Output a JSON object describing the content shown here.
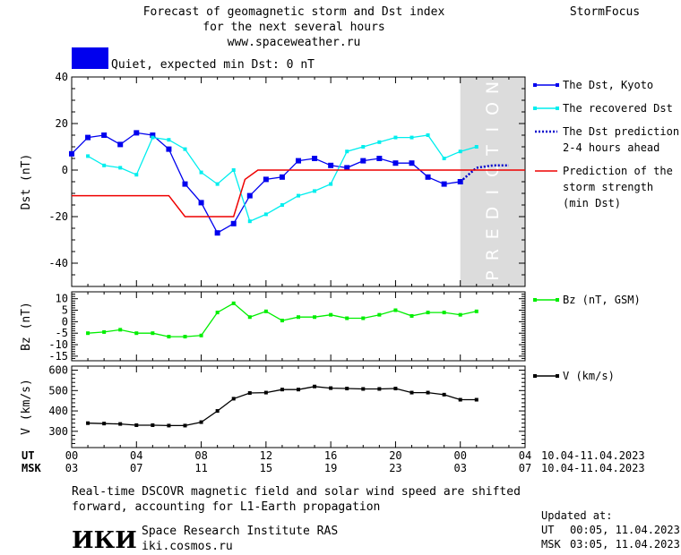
{
  "header": {
    "title_line1": "Forecast of geomagnetic storm and Dst index",
    "title_line2": "for the next several hours",
    "title_line3": "www.spaceweather.ru",
    "brand": "StormFocus"
  },
  "status": {
    "label": "Quiet, expected min Dst: 0 nT",
    "color": "#0000ee"
  },
  "prediction_label": "PREDICTION",
  "time_axis": {
    "ut_label": "UT",
    "msk_label": "MSK",
    "ut_ticks": [
      "00",
      "04",
      "08",
      "12",
      "16",
      "20",
      "00",
      "04"
    ],
    "msk_ticks": [
      "03",
      "07",
      "11",
      "15",
      "19",
      "23",
      "03",
      "07"
    ],
    "ut_dates": "10.04-11.04.2023",
    "msk_dates": "10.04-11.04.2023"
  },
  "chart_data": [
    {
      "type": "line",
      "ylabel": "Dst (nT)",
      "ylim": [
        -50,
        40
      ],
      "yticks": [
        40,
        20,
        0,
        -20,
        -40
      ],
      "xlim": [
        0,
        28
      ],
      "prediction_region": [
        24,
        28
      ],
      "legend_placement": "right",
      "series": [
        {
          "name": "The Dst, Kyoto",
          "color": "#0000ee",
          "x": [
            0,
            1,
            2,
            3,
            4,
            5,
            6,
            7,
            8,
            9,
            10,
            11,
            12,
            13,
            14,
            15,
            16,
            17,
            18,
            19,
            20,
            21,
            22,
            23,
            24
          ],
          "values": [
            7,
            14,
            15,
            11,
            16,
            15,
            9,
            -6,
            -14,
            -27,
            -23,
            -11,
            -4,
            -3,
            4,
            5,
            2,
            1,
            4,
            5,
            3,
            3,
            -3,
            -6,
            -5
          ]
        },
        {
          "name": "The recovered Dst",
          "color": "#00eeee",
          "x": [
            1,
            2,
            3,
            4,
            5,
            6,
            7,
            8,
            9,
            10,
            11,
            12,
            13,
            14,
            15,
            16,
            17,
            18,
            19,
            20,
            21,
            22,
            23,
            24,
            25
          ],
          "values": [
            6,
            2,
            1,
            -2,
            14,
            13,
            9,
            -1,
            -6,
            0,
            -22,
            -19,
            -15,
            -11,
            -9,
            -6,
            8,
            10,
            12,
            14,
            14,
            15,
            5,
            8,
            10
          ]
        },
        {
          "name": "The Dst prediction\n2-4 hours ahead",
          "color": "#0000cc",
          "x": [
            24,
            25,
            26,
            27
          ],
          "values": [
            -5,
            1,
            2,
            2
          ]
        },
        {
          "name": "Prediction of the\nstorm strength\n(min Dst)",
          "color": "#ee0000",
          "x": [
            0,
            5,
            6,
            7,
            10,
            10.7,
            11.5,
            28
          ],
          "values": [
            -11,
            -11,
            -11,
            -20,
            -20,
            -4,
            0,
            0
          ]
        }
      ]
    },
    {
      "type": "line",
      "ylabel": "Bz (nT)",
      "ylim": [
        -17,
        13
      ],
      "yticks": [
        10,
        5,
        0,
        -5,
        -10,
        -15
      ],
      "xlim": [
        0,
        28
      ],
      "series": [
        {
          "name": "Bz (nT, GSM)",
          "color": "#00ee00",
          "x": [
            1,
            2,
            3,
            4,
            5,
            6,
            7,
            8,
            9,
            10,
            11,
            12,
            13,
            14,
            15,
            16,
            17,
            18,
            19,
            20,
            21,
            22,
            23,
            24,
            25
          ],
          "values": [
            -5,
            -4.5,
            -3.5,
            -5,
            -5,
            -6.5,
            -6.5,
            -6,
            4,
            8,
            2,
            4.5,
            0.5,
            2,
            2,
            3,
            1.5,
            1.5,
            3,
            5,
            2.5,
            4,
            4,
            3,
            4.5
          ]
        }
      ]
    },
    {
      "type": "line",
      "ylabel": "V (km/s)",
      "ylim": [
        220,
        620
      ],
      "yticks": [
        600,
        500,
        400,
        300
      ],
      "xlim": [
        0,
        28
      ],
      "series": [
        {
          "name": "V (km/s)",
          "color": "#000000",
          "x": [
            1,
            2,
            3,
            4,
            5,
            6,
            7,
            8,
            9,
            10,
            11,
            12,
            13,
            14,
            15,
            16,
            17,
            18,
            19,
            20,
            21,
            22,
            23,
            24,
            25
          ],
          "values": [
            340,
            338,
            336,
            330,
            330,
            328,
            328,
            345,
            400,
            460,
            488,
            490,
            505,
            505,
            520,
            512,
            510,
            508,
            508,
            510,
            490,
            490,
            480,
            455,
            455
          ]
        }
      ]
    }
  ],
  "footer": {
    "note_line1": "Real-time DSCOVR magnetic field and solar wind speed are shifted",
    "note_line2": "forward, accounting for L1-Earth propagation",
    "logo_text": "ИКИ",
    "institute": "Space Research Institute RAS",
    "site": "iki.cosmos.ru",
    "updated_label": "Updated at:",
    "updated_ut_label": "UT",
    "updated_ut": "00:05, 11.04.2023",
    "updated_msk_label": "MSK",
    "updated_msk": "03:05, 11.04.2023"
  }
}
